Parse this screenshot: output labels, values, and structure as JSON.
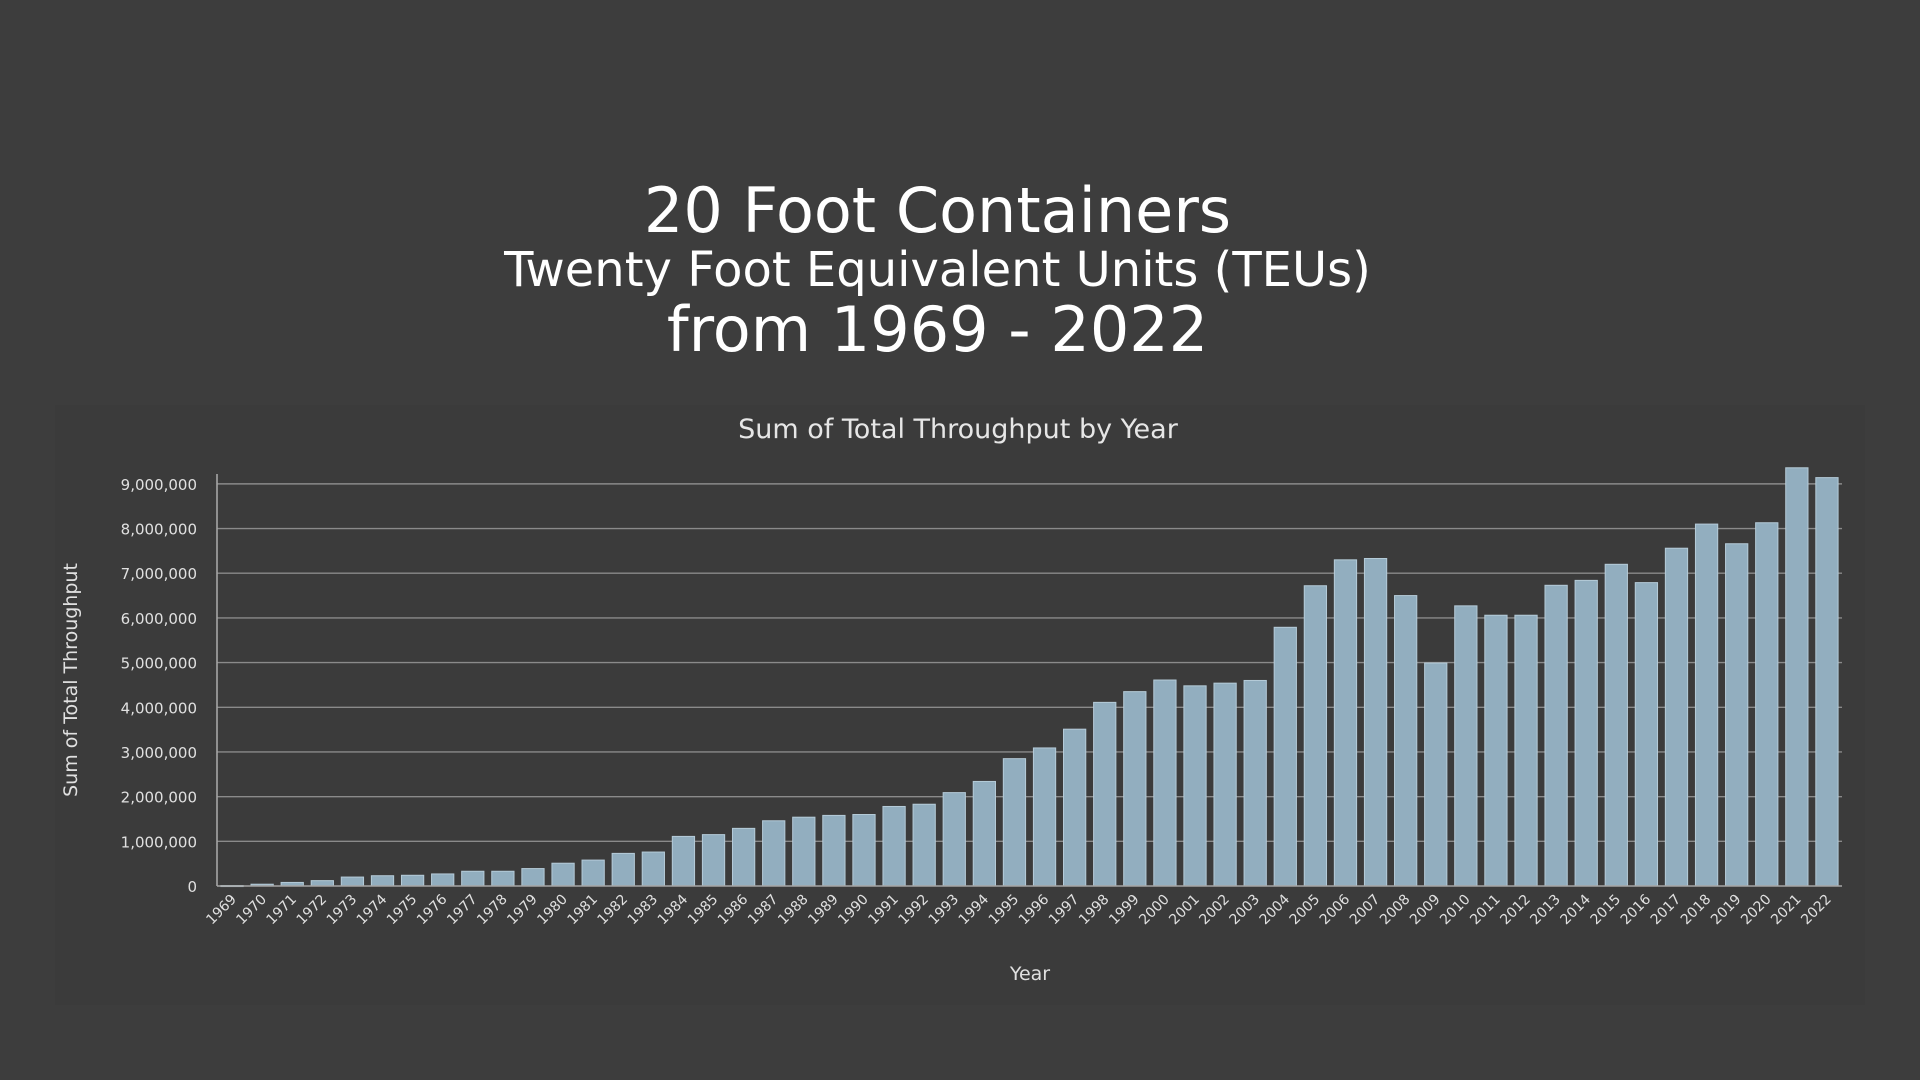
{
  "slide": {
    "title_line1": "20 Foot Containers",
    "title_line2": "Twenty Foot Equivalent Units (TEUs)",
    "title_line3": "from 1969 - 2022"
  },
  "colors": {
    "background": "#3d3d3d",
    "bar": "#92aebf",
    "bar_edge": "#b5cbd8",
    "gridline": "#8a8a8a",
    "text": "#ffffff",
    "axis_text": "#e0e0e0"
  },
  "chart_data": {
    "type": "bar",
    "title": "Sum of Total Throughput by Year",
    "xlabel": "Year",
    "ylabel": "Sum of Total Throughput",
    "ylim": [
      0,
      9400000
    ],
    "yticks": [
      0,
      1000000,
      2000000,
      3000000,
      4000000,
      5000000,
      6000000,
      7000000,
      8000000,
      9000000
    ],
    "ytick_labels": [
      "0",
      "1,000,000",
      "2,000,000",
      "3,000,000",
      "4,000,000",
      "5,000,000",
      "6,000,000",
      "7,000,000",
      "8,000,000",
      "9,000,000"
    ],
    "grid": true,
    "legend": "none",
    "categories": [
      "1969",
      "1970",
      "1971",
      "1972",
      "1973",
      "1974",
      "1975",
      "1976",
      "1977",
      "1978",
      "1979",
      "1980",
      "1981",
      "1982",
      "1983",
      "1984",
      "1985",
      "1986",
      "1987",
      "1988",
      "1989",
      "1990",
      "1991",
      "1992",
      "1993",
      "1994",
      "1995",
      "1996",
      "1997",
      "1998",
      "1999",
      "2000",
      "2001",
      "2002",
      "2003",
      "2004",
      "2005",
      "2006",
      "2007",
      "2008",
      "2009",
      "2010",
      "2011",
      "2012",
      "2013",
      "2014",
      "2015",
      "2016",
      "2017",
      "2018",
      "2019",
      "2020",
      "2021",
      "2022"
    ],
    "values": [
      10000,
      40000,
      80000,
      120000,
      200000,
      230000,
      240000,
      270000,
      330000,
      330000,
      390000,
      510000,
      580000,
      730000,
      760000,
      1110000,
      1150000,
      1290000,
      1460000,
      1540000,
      1580000,
      1600000,
      1780000,
      1830000,
      2090000,
      2340000,
      2850000,
      3090000,
      3510000,
      4110000,
      4350000,
      4610000,
      4480000,
      4540000,
      4600000,
      5790000,
      6720000,
      7300000,
      7330000,
      6500000,
      4990000,
      6270000,
      6060000,
      6060000,
      6730000,
      6840000,
      7200000,
      6790000,
      7560000,
      8100000,
      7660000,
      8130000,
      9360000,
      9140000
    ]
  }
}
